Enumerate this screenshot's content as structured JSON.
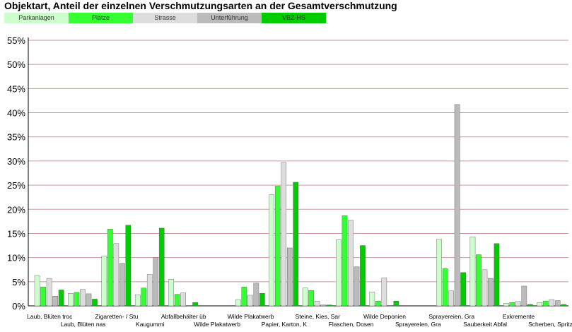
{
  "title": "Objektart, Anteil der einzelnen Verschmutzungsarten an der Gesamtverschmutzung",
  "chart_data": {
    "type": "bar",
    "title": "Objektart, Anteil der einzelnen Verschmutzungsarten an der Gesamtverschmutzung",
    "xlabel": "",
    "ylabel": "",
    "ylim": [
      0,
      55
    ],
    "y_ticks": [
      "0%",
      "5%",
      "10%",
      "15%",
      "20%",
      "25%",
      "30%",
      "35%",
      "40%",
      "45%",
      "50%",
      "55%"
    ],
    "grid": true,
    "legend_position": "top-left",
    "categories": [
      "Laub, Blüten troc",
      "Laub, Blüten nas",
      "Zigaretten- / Stu",
      "Kaugummi",
      "Abfallbehälter üb",
      "Wilde Plakatwerb",
      "Wilde Plakatwerb",
      "Papier, Karton, K",
      "Steine, Kies, Sar",
      "Flaschen, Dosen",
      "Wilde Deponien",
      "Sprayereien, Gra",
      "Sprayereien, Gra",
      "Sauberkeit Abfal",
      "Exkremente",
      "Scherben, Spritze"
    ],
    "series": [
      {
        "name": "Parkanlagen",
        "color": "#ccffcc",
        "values": [
          6.3,
          2.6,
          10.3,
          2.3,
          5.5,
          0,
          1.3,
          23.0,
          3.7,
          13.7,
          2.9,
          0,
          13.8,
          14.3,
          0.5,
          0.7
        ]
      },
      {
        "name": "Plätze",
        "color": "#33ff33",
        "values": [
          3.9,
          2.8,
          15.9,
          3.7,
          2.4,
          0,
          3.9,
          24.8,
          3.2,
          18.7,
          1.0,
          0,
          7.7,
          10.6,
          0.7,
          1.0
        ]
      },
      {
        "name": "Strasse",
        "color": "#dddddd",
        "values": [
          5.7,
          3.4,
          12.9,
          6.5,
          2.7,
          0,
          2.2,
          29.7,
          1.0,
          17.7,
          5.8,
          0,
          3.1,
          7.5,
          0.9,
          1.3
        ]
      },
      {
        "name": "Unterführung",
        "color": "#bbbbbb",
        "values": [
          2.0,
          2.5,
          8.8,
          10.0,
          0.1,
          0,
          4.7,
          12.0,
          0.2,
          8.1,
          0.1,
          0,
          41.7,
          5.7,
          4.1,
          1.1
        ]
      },
      {
        "name": "VBZ-HS",
        "color": "#00cc00",
        "values": [
          3.3,
          1.4,
          16.7,
          16.1,
          0.7,
          0,
          2.6,
          25.6,
          0.2,
          12.5,
          1.0,
          0,
          6.9,
          12.9,
          0.3,
          0.3
        ]
      }
    ]
  }
}
